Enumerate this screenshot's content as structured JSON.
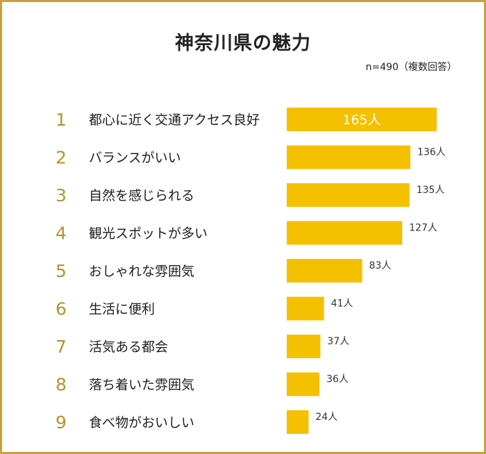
{
  "chart_data": {
    "type": "bar",
    "orientation": "horizontal",
    "title": "神奈川県の魅力",
    "note": "n=490（複数回答）",
    "unit": "人",
    "ranks": [
      "1",
      "2",
      "3",
      "4",
      "5",
      "6",
      "7",
      "8",
      "9"
    ],
    "categories": [
      "都心に近く交通アクセス良好",
      "バランスがいい",
      "自然を感じられる",
      "観光スポットが多い",
      "おしゃれな雰囲気",
      "生活に便利",
      "活気ある都会",
      "落ち着いた雰囲気",
      "食べ物がおいしい"
    ],
    "values": [
      165,
      136,
      135,
      127,
      83,
      41,
      37,
      36,
      24
    ],
    "value_labels": [
      "165人",
      "136人",
      "135人",
      "127人",
      "83人",
      "41人",
      "37人",
      "36人",
      "24人"
    ],
    "xlim": [
      0,
      165
    ],
    "grid": false,
    "legend": "none",
    "colors": {
      "bar": "#f5c000",
      "rank": "#b8912d",
      "border": "#c8a040",
      "text": "#1e1e1e"
    }
  }
}
